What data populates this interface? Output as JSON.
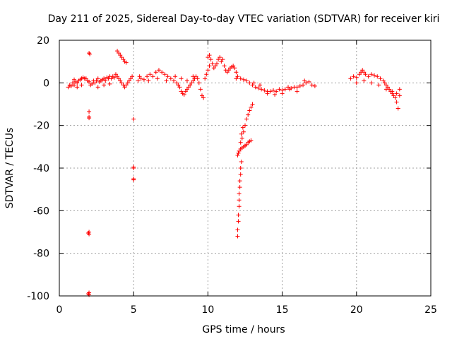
{
  "chart_data": {
    "type": "scatter",
    "title": "Day 211 of 2025, Sidereal Day-to-day VTEC variation (SDTVAR) for receiver kiri",
    "xlabel": "GPS time / hours",
    "ylabel": "SDTVAR / TECUs",
    "xlim": [
      0,
      25
    ],
    "ylim": [
      -100,
      20
    ],
    "xticks": [
      0,
      5,
      10,
      15,
      20,
      25
    ],
    "yticks": [
      20,
      0,
      -20,
      -40,
      -60,
      -80,
      -100
    ],
    "grid": true,
    "marker": "+",
    "color": "#ff0000",
    "series": [
      {
        "name": "SDTVAR",
        "points": [
          [
            0.6,
            -2
          ],
          [
            0.7,
            -1
          ],
          [
            0.8,
            -1.5
          ],
          [
            0.9,
            0
          ],
          [
            1.0,
            -1
          ],
          [
            1.1,
            0.5
          ],
          [
            1.2,
            0
          ],
          [
            1.3,
            1
          ],
          [
            1.4,
            1.5
          ],
          [
            1.5,
            2
          ],
          [
            1.6,
            2.5
          ],
          [
            1.7,
            2
          ],
          [
            1.8,
            2
          ],
          [
            1.9,
            1
          ],
          [
            2.0,
            0.5
          ],
          [
            2.1,
            -1
          ],
          [
            2.2,
            -0.5
          ],
          [
            1.5,
            -1
          ],
          [
            1.2,
            -2
          ],
          [
            1.0,
            1.5
          ],
          [
            2.0,
            14
          ],
          [
            2.05,
            13.5
          ],
          [
            2.0,
            -13.5
          ],
          [
            2.0,
            -16
          ],
          [
            2.0,
            -16.5
          ],
          [
            2.0,
            -70
          ],
          [
            2.0,
            -71
          ],
          [
            1.95,
            -70.5
          ],
          [
            2.0,
            -98.5
          ],
          [
            2.0,
            -99.5
          ],
          [
            1.95,
            -99
          ],
          [
            2.3,
            1
          ],
          [
            2.4,
            0
          ],
          [
            2.5,
            1
          ],
          [
            2.6,
            2
          ],
          [
            2.7,
            0.5
          ],
          [
            2.8,
            1
          ],
          [
            2.9,
            1.5
          ],
          [
            3.0,
            2
          ],
          [
            3.1,
            1
          ],
          [
            3.2,
            2.5
          ],
          [
            3.3,
            2
          ],
          [
            3.4,
            3
          ],
          [
            3.5,
            2
          ],
          [
            3.6,
            3
          ],
          [
            3.7,
            2.5
          ],
          [
            3.8,
            4
          ],
          [
            3.9,
            3
          ],
          [
            4.0,
            2
          ],
          [
            4.1,
            1
          ],
          [
            4.2,
            0
          ],
          [
            4.3,
            -1
          ],
          [
            4.4,
            -2
          ],
          [
            4.5,
            -1
          ],
          [
            4.6,
            0
          ],
          [
            4.7,
            1
          ],
          [
            4.8,
            2
          ],
          [
            4.9,
            3
          ],
          [
            2.6,
            -2
          ],
          [
            3.0,
            -1
          ],
          [
            3.4,
            -0.5
          ],
          [
            3.9,
            15
          ],
          [
            4.0,
            14
          ],
          [
            4.1,
            13
          ],
          [
            4.2,
            12
          ],
          [
            4.3,
            11
          ],
          [
            4.4,
            10
          ],
          [
            4.5,
            9.5
          ],
          [
            5.0,
            -17
          ],
          [
            5.0,
            -39.5
          ],
          [
            5.0,
            -40
          ],
          [
            5.0,
            -45
          ],
          [
            5.0,
            -45.5
          ],
          [
            5.3,
            1
          ],
          [
            5.5,
            2
          ],
          [
            5.7,
            1.5
          ],
          [
            5.9,
            3
          ],
          [
            6.1,
            4
          ],
          [
            6.3,
            3
          ],
          [
            6.5,
            5
          ],
          [
            6.7,
            6
          ],
          [
            6.9,
            5
          ],
          [
            7.1,
            4
          ],
          [
            7.3,
            3
          ],
          [
            7.5,
            2
          ],
          [
            7.7,
            1
          ],
          [
            7.9,
            0
          ],
          [
            8.0,
            -1
          ],
          [
            8.1,
            -2
          ],
          [
            8.2,
            -4
          ],
          [
            8.3,
            -5
          ],
          [
            8.4,
            -5.5
          ],
          [
            8.5,
            -4
          ],
          [
            8.6,
            -3
          ],
          [
            8.7,
            -2
          ],
          [
            8.8,
            -1
          ],
          [
            8.9,
            0
          ],
          [
            9.0,
            1
          ],
          [
            9.1,
            2
          ],
          [
            9.2,
            3
          ],
          [
            9.3,
            2
          ],
          [
            9.4,
            0
          ],
          [
            9.5,
            -3
          ],
          [
            9.6,
            -6
          ],
          [
            9.7,
            -7
          ],
          [
            5.4,
            3
          ],
          [
            6.0,
            1
          ],
          [
            6.6,
            2
          ],
          [
            7.2,
            1
          ],
          [
            7.8,
            3
          ],
          [
            8.2,
            2
          ],
          [
            8.6,
            1
          ],
          [
            9.0,
            3
          ],
          [
            9.8,
            2
          ],
          [
            9.9,
            4
          ],
          [
            10.0,
            6
          ],
          [
            10.1,
            8
          ],
          [
            10.0,
            12
          ],
          [
            10.1,
            13
          ],
          [
            10.2,
            11
          ],
          [
            10.3,
            9
          ],
          [
            10.4,
            7
          ],
          [
            10.5,
            8
          ],
          [
            10.6,
            9
          ],
          [
            10.7,
            11
          ],
          [
            10.8,
            12
          ],
          [
            10.9,
            10
          ],
          [
            11.0,
            11
          ],
          [
            11.1,
            8
          ],
          [
            11.2,
            6
          ],
          [
            11.3,
            5
          ],
          [
            11.4,
            6
          ],
          [
            11.5,
            7
          ],
          [
            11.6,
            7.5
          ],
          [
            11.7,
            8
          ],
          [
            11.8,
            7
          ],
          [
            11.9,
            5
          ],
          [
            12.0,
            3
          ],
          [
            11.9,
            2
          ],
          [
            12.0,
            -34
          ],
          [
            12.05,
            -33
          ],
          [
            12.1,
            -32
          ],
          [
            12.2,
            -31
          ],
          [
            12.3,
            -30.5
          ],
          [
            12.4,
            -30
          ],
          [
            12.5,
            -29.5
          ],
          [
            12.6,
            -29
          ],
          [
            12.7,
            -28
          ],
          [
            12.8,
            -27.5
          ],
          [
            12.9,
            -27
          ],
          [
            12.2,
            -28
          ],
          [
            12.3,
            -26
          ],
          [
            12.4,
            -23
          ],
          [
            12.5,
            -20
          ],
          [
            12.6,
            -17
          ],
          [
            12.7,
            -15
          ],
          [
            12.8,
            -13
          ],
          [
            12.9,
            -11.5
          ],
          [
            13.0,
            -10
          ],
          [
            12.25,
            -24
          ],
          [
            12.35,
            -21
          ],
          [
            12.0,
            -72
          ],
          [
            12.0,
            -69
          ],
          [
            12.05,
            -65
          ],
          [
            12.05,
            -62
          ],
          [
            12.1,
            -58
          ],
          [
            12.1,
            -55
          ],
          [
            12.1,
            -52
          ],
          [
            12.15,
            -49
          ],
          [
            12.15,
            -46
          ],
          [
            12.2,
            -43
          ],
          [
            12.2,
            -40
          ],
          [
            12.25,
            -37
          ],
          [
            12.2,
            2
          ],
          [
            12.4,
            1.5
          ],
          [
            12.6,
            1
          ],
          [
            12.8,
            0
          ],
          [
            13.0,
            -1
          ],
          [
            13.2,
            -2
          ],
          [
            13.4,
            -2.5
          ],
          [
            13.6,
            -3
          ],
          [
            13.8,
            -3.5
          ],
          [
            14.0,
            -4
          ],
          [
            14.2,
            -4
          ],
          [
            14.4,
            -3.5
          ],
          [
            14.6,
            -4
          ],
          [
            14.8,
            -3
          ],
          [
            15.0,
            -3.5
          ],
          [
            15.2,
            -3
          ],
          [
            15.4,
            -2
          ],
          [
            15.6,
            -2.5
          ],
          [
            15.8,
            -2
          ],
          [
            16.0,
            -2
          ],
          [
            16.2,
            -1.5
          ],
          [
            16.4,
            -1
          ],
          [
            16.6,
            0
          ],
          [
            16.8,
            0.5
          ],
          [
            17.0,
            -1
          ],
          [
            17.2,
            -1.5
          ],
          [
            13.1,
            0
          ],
          [
            13.5,
            -1
          ],
          [
            14.0,
            -5
          ],
          [
            14.5,
            -5.5
          ],
          [
            15.0,
            -5
          ],
          [
            15.5,
            -3
          ],
          [
            16.0,
            -4
          ],
          [
            16.5,
            1
          ],
          [
            19.6,
            2
          ],
          [
            19.8,
            3
          ],
          [
            20.0,
            2.5
          ],
          [
            20.2,
            4
          ],
          [
            20.3,
            5
          ],
          [
            20.4,
            6
          ],
          [
            20.5,
            5
          ],
          [
            20.6,
            4
          ],
          [
            20.8,
            3
          ],
          [
            21.0,
            4
          ],
          [
            21.2,
            3.5
          ],
          [
            21.4,
            3
          ],
          [
            21.6,
            2
          ],
          [
            21.8,
            1
          ],
          [
            21.9,
            0
          ],
          [
            22.0,
            -1
          ],
          [
            22.1,
            -2
          ],
          [
            22.2,
            -3
          ],
          [
            22.3,
            -4
          ],
          [
            22.4,
            -5
          ],
          [
            22.5,
            -6
          ],
          [
            22.6,
            -7
          ],
          [
            22.7,
            -9
          ],
          [
            22.8,
            -12
          ],
          [
            20.0,
            0
          ],
          [
            20.5,
            1
          ],
          [
            21.0,
            0
          ],
          [
            21.5,
            -1
          ],
          [
            22.0,
            -3
          ],
          [
            22.4,
            -4
          ],
          [
            22.7,
            -5
          ],
          [
            22.9,
            -3
          ],
          [
            22.9,
            -6
          ]
        ]
      }
    ]
  }
}
